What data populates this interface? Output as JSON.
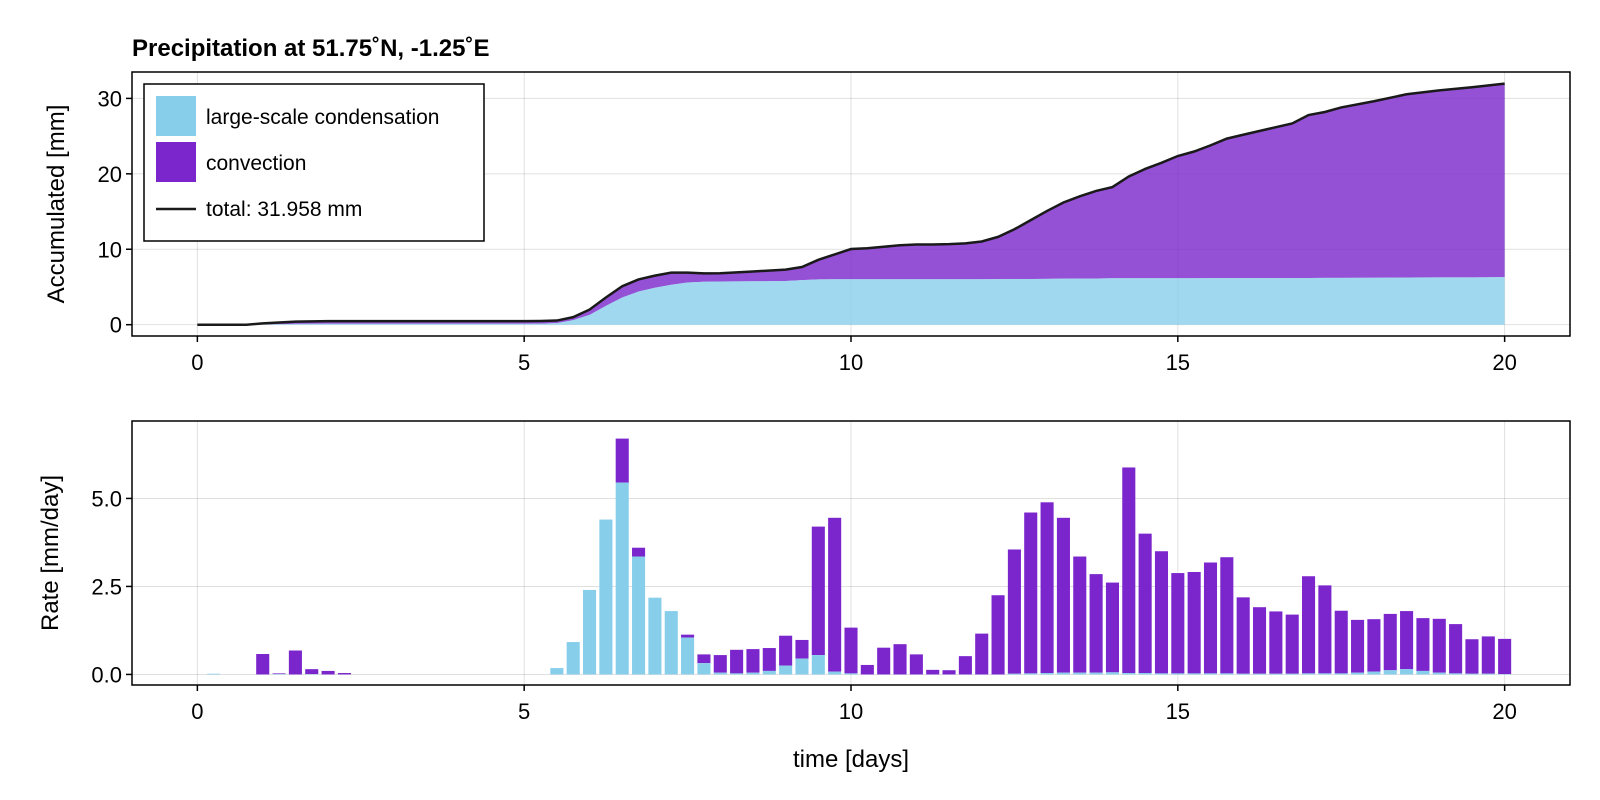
{
  "chart_data": [
    {
      "type": "area",
      "title": "Precipitation at 51.75˚N, -1.25˚E",
      "xlabel": "",
      "ylabel": "Accumulated [mm]",
      "xlim": [
        -1,
        21
      ],
      "ylim": [
        -1.5,
        33.5
      ],
      "xticks": [
        0,
        5,
        10,
        15,
        20
      ],
      "yticks": [
        0,
        10,
        20,
        30
      ],
      "grid": true,
      "legend_position": "top-left",
      "x": [
        0,
        0.75,
        1,
        1.5,
        2,
        2.5,
        3,
        3.5,
        4,
        4.5,
        5,
        5.25,
        5.5,
        5.75,
        6,
        6.25,
        6.5,
        6.75,
        7,
        7.25,
        7.5,
        7.75,
        8,
        8.5,
        9,
        9.25,
        9.5,
        9.75,
        10,
        10.25,
        10.5,
        10.75,
        11,
        11.25,
        11.5,
        11.75,
        12,
        12.25,
        12.5,
        12.75,
        13,
        13.25,
        13.5,
        13.75,
        14,
        14.25,
        14.5,
        14.75,
        15,
        15.25,
        15.5,
        15.75,
        16,
        16.5,
        16.75,
        17,
        17.25,
        17.5,
        18,
        18.5,
        19,
        19.5,
        20
      ],
      "series": [
        {
          "name": "large-scale condensation",
          "color": "#87CEEB",
          "values": [
            0,
            0,
            0.02,
            0.1,
            0.12,
            0.12,
            0.12,
            0.12,
            0.12,
            0.12,
            0.12,
            0.14,
            0.2,
            0.6,
            1.3,
            2.5,
            3.6,
            4.4,
            4.9,
            5.3,
            5.6,
            5.7,
            5.72,
            5.75,
            5.8,
            5.9,
            6.0,
            6.02,
            6.03,
            6.03,
            6.03,
            6.03,
            6.03,
            6.03,
            6.03,
            6.03,
            6.03,
            6.04,
            6.05,
            6.06,
            6.08,
            6.1,
            6.12,
            6.13,
            6.15,
            6.15,
            6.15,
            6.16,
            6.16,
            6.16,
            6.17,
            6.17,
            6.18,
            6.18,
            6.18,
            6.19,
            6.2,
            6.2,
            6.22,
            6.25,
            6.27,
            6.28,
            6.3
          ]
        },
        {
          "name": "convection",
          "color": "#7B25CC",
          "values": [
            0,
            0,
            0.15,
            0.3,
            0.35,
            0.35,
            0.35,
            0.35,
            0.35,
            0.35,
            0.35,
            0.35,
            0.35,
            0.4,
            0.7,
            1.1,
            1.5,
            1.6,
            1.6,
            1.6,
            1.3,
            1.1,
            1.1,
            1.3,
            1.5,
            1.75,
            2.6,
            3.3,
            4.0,
            4.1,
            4.3,
            4.5,
            4.6,
            4.6,
            4.65,
            4.75,
            5.0,
            5.6,
            6.6,
            7.8,
            9.0,
            10.1,
            10.9,
            11.6,
            12.1,
            13.5,
            14.5,
            15.3,
            16.2,
            16.8,
            17.6,
            18.5,
            19.0,
            20.0,
            20.5,
            21.6,
            22.0,
            22.6,
            23.4,
            24.3,
            24.8,
            25.2,
            25.66
          ]
        }
      ],
      "total_line": {
        "name": "total: 31.958 mm",
        "color": "#1a1a1a"
      }
    },
    {
      "type": "bar",
      "stacked": true,
      "title": "",
      "xlabel": "time [days]",
      "ylabel": "Rate [mm/day]",
      "xlim": [
        -1,
        21
      ],
      "ylim": [
        -0.3,
        7.2
      ],
      "xticks": [
        0,
        5,
        10,
        15,
        20
      ],
      "yticks": [
        0,
        2.5,
        5
      ],
      "ytick_labels": [
        "0.0",
        "2.5",
        "5.0"
      ],
      "grid": true,
      "bar_width": 0.2,
      "x": [
        0.25,
        0.5,
        0.75,
        1.0,
        1.25,
        1.5,
        1.75,
        2.0,
        2.25,
        2.5,
        2.75,
        3.0,
        3.25,
        3.5,
        3.75,
        4.0,
        4.25,
        4.5,
        4.75,
        5.0,
        5.25,
        5.5,
        5.75,
        6.0,
        6.25,
        6.5,
        6.75,
        7.0,
        7.25,
        7.5,
        7.75,
        8.0,
        8.25,
        8.5,
        8.75,
        9.0,
        9.25,
        9.5,
        9.75,
        10.0,
        10.25,
        10.5,
        10.75,
        11.0,
        11.25,
        11.5,
        11.75,
        12.0,
        12.25,
        12.5,
        12.75,
        13.0,
        13.25,
        13.5,
        13.75,
        14.0,
        14.25,
        14.5,
        14.75,
        15.0,
        15.25,
        15.5,
        15.75,
        16.0,
        16.25,
        16.5,
        16.75,
        17.0,
        17.25,
        17.5,
        17.75,
        18.0,
        18.25,
        18.5,
        18.75,
        19.0,
        19.25,
        19.5,
        19.75,
        20.0
      ],
      "series": [
        {
          "name": "large-scale condensation",
          "color": "#87CEEB",
          "values": [
            0.02,
            0,
            0,
            0,
            0.01,
            0,
            0.01,
            0,
            0,
            0,
            0,
            0,
            0,
            0,
            0,
            0,
            0,
            0,
            0,
            0,
            0,
            0.18,
            0.92,
            2.4,
            4.4,
            5.45,
            3.35,
            2.18,
            1.8,
            1.05,
            0.32,
            0.05,
            0.03,
            0.05,
            0.1,
            0.25,
            0.45,
            0.55,
            0.08,
            0.03,
            0,
            0,
            0,
            0,
            0,
            0,
            0,
            0,
            0,
            0.02,
            0.03,
            0.04,
            0.05,
            0.05,
            0.05,
            0.06,
            0.04,
            0.04,
            0.03,
            0.03,
            0.03,
            0.03,
            0.03,
            0.02,
            0.02,
            0.02,
            0.02,
            0.03,
            0.03,
            0.03,
            0.05,
            0.08,
            0.12,
            0.15,
            0.1,
            0.05,
            0.03,
            0.02,
            0.02,
            0.01
          ]
        },
        {
          "name": "convection",
          "color": "#7B25CC",
          "values": [
            0,
            0,
            0,
            0.58,
            0.02,
            0.68,
            0.14,
            0.1,
            0.04,
            0,
            0,
            0,
            0,
            0,
            0,
            0,
            0,
            0,
            0,
            0,
            0,
            0,
            0,
            0,
            0,
            1.25,
            0.25,
            0,
            0,
            0.08,
            0.25,
            0.5,
            0.67,
            0.67,
            0.65,
            0.85,
            0.53,
            3.65,
            4.37,
            1.3,
            0.27,
            0.76,
            0.86,
            0.57,
            0.13,
            0.12,
            0.52,
            1.16,
            2.25,
            3.53,
            4.57,
            4.85,
            4.4,
            3.3,
            2.8,
            2.55,
            5.84,
            3.96,
            3.47,
            2.85,
            2.88,
            3.15,
            3.3,
            2.17,
            1.89,
            1.77,
            1.68,
            2.76,
            2.5,
            1.78,
            1.5,
            1.49,
            1.6,
            1.65,
            1.5,
            1.53,
            1.4,
            0.98,
            1.06,
            1.0
          ]
        }
      ]
    }
  ],
  "legend": {
    "entries": [
      "large-scale condensation",
      "convection",
      "total: 31.958 mm"
    ]
  }
}
